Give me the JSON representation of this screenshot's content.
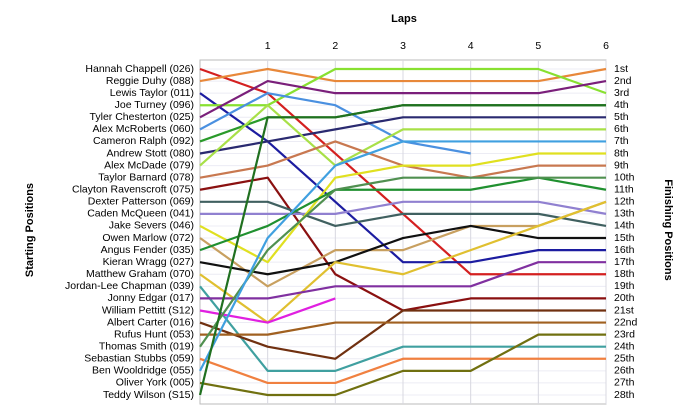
{
  "chart_data": {
    "type": "line",
    "title": "Laps",
    "y_label": "Starting Positions",
    "y2_label": "Finishing Positions",
    "x": [
      0,
      1,
      2,
      3,
      4,
      5,
      6
    ],
    "xlim": [
      0,
      6
    ],
    "xticks": [
      1,
      2,
      3,
      4,
      5,
      6
    ],
    "ylim": [
      1,
      28
    ],
    "yticks": [
      1,
      2,
      3,
      4,
      5,
      6,
      7,
      8,
      9,
      10,
      11,
      12,
      13,
      14,
      15,
      16,
      17,
      18,
      19,
      20,
      21,
      22,
      23,
      24,
      25,
      26,
      27,
      28
    ],
    "inverted": true,
    "grid": true,
    "finishing_positions": [
      "1st",
      "2nd",
      "3rd",
      "4th",
      "5th",
      "6th",
      "7th",
      "8th",
      "9th",
      "10th",
      "11th",
      "12th",
      "13th",
      "14th",
      "15th",
      "16th",
      "17th",
      "18th",
      "19th",
      "20th",
      "21st",
      "22nd",
      "23rd",
      "24th",
      "25th",
      "26th",
      "27th",
      "28th"
    ],
    "series": [
      {
        "name": "Hannah Chappell (026)",
        "color": "#d42020",
        "values": [
          1,
          3,
          8,
          13,
          18,
          18,
          18
        ]
      },
      {
        "name": "Reggie Duhy (088)",
        "color": "#e8883a",
        "values": [
          2,
          1,
          2,
          2,
          2,
          2,
          1
        ]
      },
      {
        "name": "Lewis Taylor (011)",
        "color": "#1c1ca0",
        "values": [
          3,
          7,
          12,
          17,
          17,
          16,
          16
        ]
      },
      {
        "name": "Joe Turney (096)",
        "color": "#88e030",
        "values": [
          4,
          4,
          1,
          1,
          1,
          1,
          3
        ]
      },
      {
        "name": "Tyler Chesterton (025)",
        "color": "#7a1f7a",
        "values": [
          5,
          2,
          3,
          3,
          3,
          3,
          2
        ]
      },
      {
        "name": "Alex McRoberts (060)",
        "color": "#4a90e0",
        "values": [
          6,
          3,
          4,
          7,
          8,
          null,
          null
        ]
      },
      {
        "name": "Cameron Ralph (092)",
        "color": "#2a9a2a",
        "values": [
          7,
          5,
          5,
          4,
          4,
          4,
          4
        ]
      },
      {
        "name": "Andrew Stott (080)",
        "color": "#2a2a70",
        "values": [
          8,
          7,
          6,
          5,
          5,
          5,
          5
        ]
      },
      {
        "name": "Alex McDade (079)",
        "color": "#a8e048",
        "values": [
          9,
          4,
          9,
          6,
          6,
          6,
          6
        ]
      },
      {
        "name": "Taylor Barnard (078)",
        "color": "#c87850",
        "values": [
          10,
          9,
          7,
          9,
          10,
          9,
          9
        ]
      },
      {
        "name": "Clayton Ravenscroft (075)",
        "color": "#8a1010",
        "values": [
          11,
          10,
          18,
          21,
          20,
          20,
          20
        ]
      },
      {
        "name": "Dexter Patterson (069)",
        "color": "#406060",
        "values": [
          12,
          12,
          14,
          13,
          13,
          13,
          14
        ]
      },
      {
        "name": "Caden McQueen (041)",
        "color": "#9080d0",
        "values": [
          13,
          13,
          13,
          12,
          12,
          12,
          13
        ]
      },
      {
        "name": "Jake Severs (046)",
        "color": "#e0e020",
        "values": [
          14,
          17,
          10,
          9,
          9,
          8,
          8
        ]
      },
      {
        "name": "Owen Marlow (072)",
        "color": "#c8a060",
        "values": [
          15,
          19,
          16,
          16,
          14,
          14,
          12
        ]
      },
      {
        "name": "Angus Fender (035)",
        "color": "#209030",
        "values": [
          16,
          14,
          11,
          11,
          11,
          10,
          11
        ]
      },
      {
        "name": "Kieran Wragg (027)",
        "color": "#101010",
        "values": [
          17,
          18,
          17,
          15,
          14,
          15,
          15
        ]
      },
      {
        "name": "Matthew Graham (070)",
        "color": "#e0c030",
        "values": [
          18,
          22,
          17,
          18,
          16,
          14,
          12
        ]
      },
      {
        "name": "Jordan-Lee Chapman (039)",
        "color": "#40a0a0",
        "values": [
          19,
          26,
          26,
          24,
          24,
          24,
          24
        ]
      },
      {
        "name": "Jonny Edgar (017)",
        "color": "#8030a0",
        "values": [
          20,
          20,
          19,
          19,
          19,
          17,
          17
        ]
      },
      {
        "name": "William Pettitt (S12)",
        "color": "#e020e0",
        "values": [
          21,
          22,
          20,
          null,
          null,
          null,
          null
        ]
      },
      {
        "name": "Albert Carter (016)",
        "color": "#703010",
        "values": [
          22,
          24,
          25,
          21,
          21,
          21,
          21
        ]
      },
      {
        "name": "Rufus Hunt (053)",
        "color": "#a06020",
        "values": [
          23,
          23,
          22,
          22,
          22,
          22,
          22
        ]
      },
      {
        "name": "Thomas Smith (019)",
        "color": "#509050",
        "values": [
          24,
          16,
          11,
          10,
          10,
          10,
          10
        ]
      },
      {
        "name": "Sebastian Stubbs (059)",
        "color": "#f08040",
        "values": [
          25,
          27,
          27,
          25,
          25,
          25,
          25
        ]
      },
      {
        "name": "Ben Wooldridge (055)",
        "color": "#40a0e0",
        "values": [
          26,
          15,
          9,
          7,
          7,
          7,
          7
        ]
      },
      {
        "name": "Oliver York (005)",
        "color": "#707010",
        "values": [
          27,
          28,
          28,
          26,
          26,
          23,
          23
        ]
      },
      {
        "name": "Teddy Wilson (S15)",
        "color": "#207020",
        "values": [
          28,
          5,
          5,
          4,
          4,
          4,
          4
        ]
      }
    ]
  }
}
